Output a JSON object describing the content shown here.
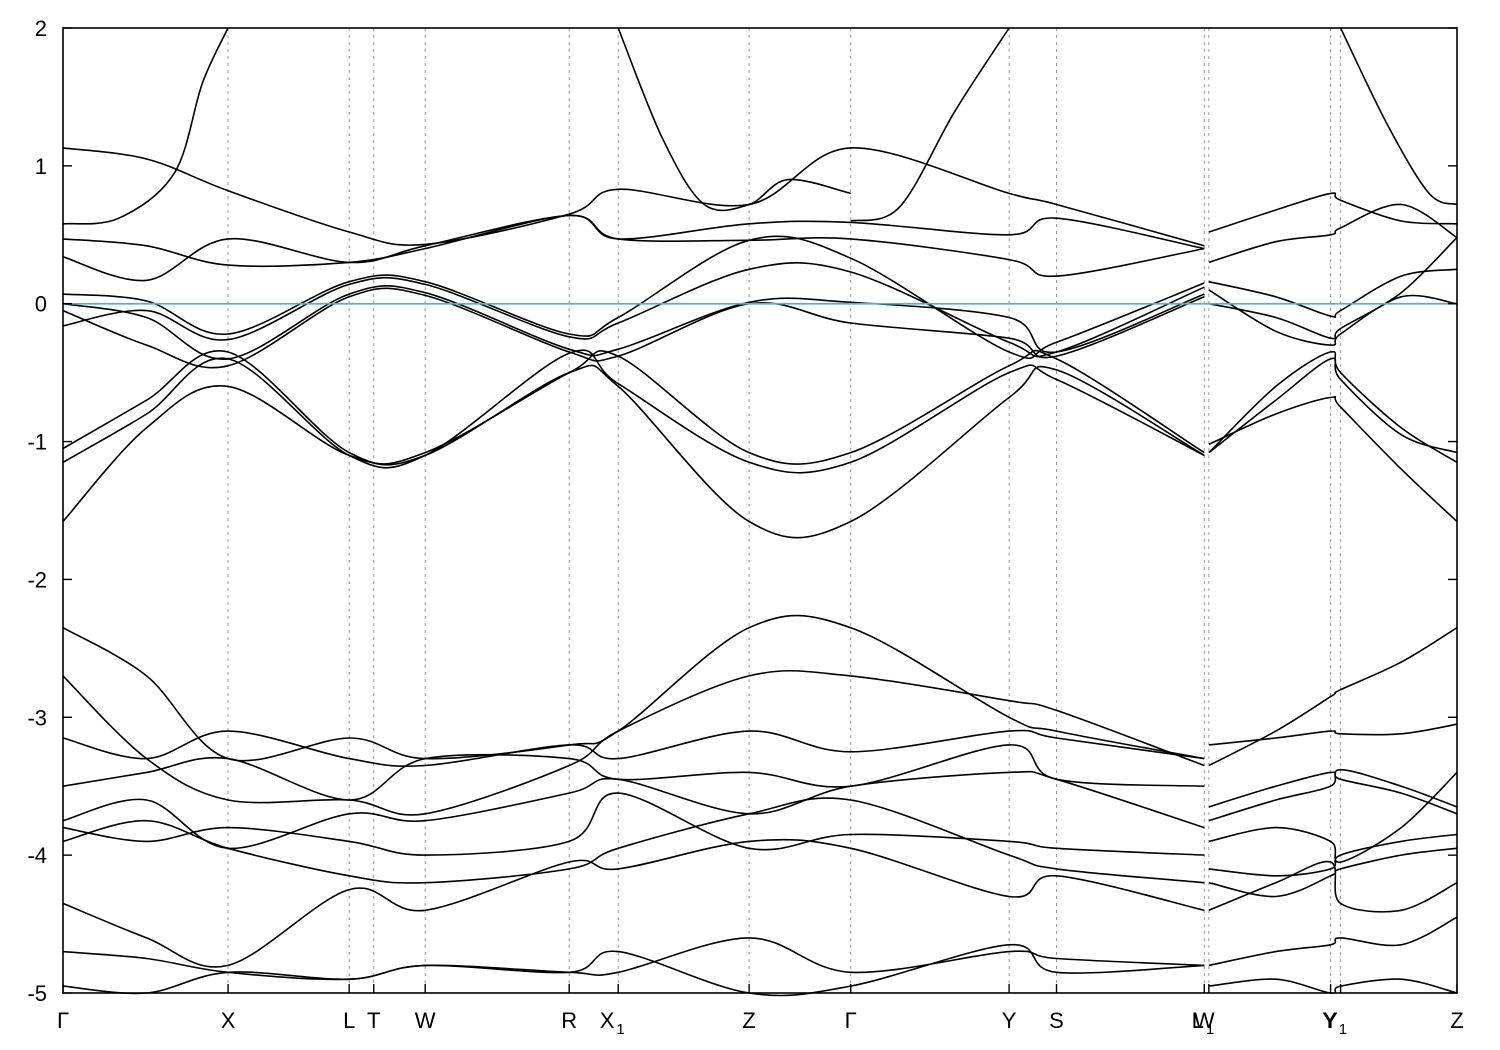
{
  "chart_data": {
    "type": "line",
    "title": "",
    "xlabel": "",
    "ylabel": "",
    "ylim": [
      -5,
      2
    ],
    "yticks": [
      2,
      1,
      0,
      -1,
      -2,
      -3,
      -4,
      -5
    ],
    "xlim": [
      0,
      1
    ],
    "grid": "vertical dashed at high-symmetry points",
    "legend": "none",
    "colors": {
      "band": "#000000",
      "fermi_level": "#5aaec6",
      "gridline": "#9a9a9a"
    },
    "high_symmetry_points": [
      {
        "label": "Γ",
        "sub": "",
        "x": 0.0
      },
      {
        "label": "X",
        "sub": "",
        "x": 0.1184
      },
      {
        "label": "L",
        "sub": "",
        "x": 0.2053
      },
      {
        "label": "T",
        "sub": "",
        "x": 0.2229
      },
      {
        "label": "W",
        "sub": "",
        "x": 0.2598
      },
      {
        "label": "R",
        "sub": "",
        "x": 0.3631
      },
      {
        "label": "X",
        "sub": "1",
        "x": 0.3983
      },
      {
        "label": "Z",
        "sub": "",
        "x": 0.4922
      },
      {
        "label": "Γ",
        "sub": "",
        "x": 0.5651
      },
      {
        "label": "Y",
        "sub": "",
        "x": 0.6787
      },
      {
        "label": "S",
        "sub": "",
        "x": 0.7127
      },
      {
        "label": "W",
        "sub": "",
        "x": 0.8187
      },
      {
        "label": "L",
        "sub": "1",
        "x": 0.822
      },
      {
        "label": "Y",
        "sub": "",
        "x": 0.9093
      },
      {
        "label": "Y",
        "sub": "1",
        "x": 0.9165
      },
      {
        "label": "Z",
        "sub": "",
        "x": 1.0
      }
    ],
    "fermi_level": 0,
    "series": [
      {
        "x": [
          0.0,
          0.04,
          0.08,
          0.1,
          0.1184
        ],
        "values": [
          0.58,
          0.62,
          0.95,
          1.6,
          2.0
        ]
      },
      {
        "x": [
          0.3983,
          0.43,
          0.46,
          0.4922,
          0.52,
          0.565
        ],
        "values": [
          2.0,
          1.2,
          0.72,
          0.72,
          0.9,
          0.8
        ]
      },
      {
        "x": [
          0.565,
          0.6,
          0.64,
          0.6787
        ],
        "values": [
          0.6,
          0.7,
          1.4,
          2.0
        ]
      },
      {
        "x": [
          0.9165,
          0.95,
          0.98,
          1.0
        ],
        "values": [
          2.0,
          1.3,
          0.8,
          0.72
        ]
      },
      {
        "x": [
          0.0,
          0.06,
          0.1184,
          0.2053,
          0.2598,
          0.3631,
          0.3983,
          0.4922,
          0.5651,
          0.6787,
          0.7127,
          0.8187
        ],
        "values": [
          1.13,
          1.05,
          0.82,
          0.52,
          0.43,
          0.65,
          0.83,
          0.72,
          1.13,
          0.8,
          0.72,
          0.42
        ]
      },
      {
        "x": [
          0.0,
          0.06,
          0.1184,
          0.2053,
          0.2598,
          0.3631,
          0.3983,
          0.4922,
          0.5651,
          0.6787,
          0.7127,
          0.8187
        ],
        "values": [
          0.47,
          0.42,
          0.28,
          0.3,
          0.4,
          0.64,
          0.47,
          0.58,
          0.59,
          0.5,
          0.62,
          0.4
        ]
      },
      {
        "x": [
          0.0,
          0.06,
          0.1184,
          0.2053,
          0.2598,
          0.3631,
          0.3983,
          0.4922,
          0.5651,
          0.6787,
          0.7127,
          0.8187
        ],
        "values": [
          0.34,
          0.17,
          0.47,
          0.3,
          0.42,
          0.64,
          0.47,
          0.46,
          0.47,
          0.32,
          0.2,
          0.4
        ]
      },
      {
        "x": [
          0.822,
          0.87,
          0.9093,
          0.9165,
          0.96,
          1.0
        ],
        "values": [
          0.52,
          0.68,
          0.8,
          0.75,
          0.6,
          0.58
        ]
      },
      {
        "x": [
          0.822,
          0.87,
          0.9093,
          0.9165,
          0.96,
          1.0
        ],
        "values": [
          0.3,
          0.45,
          0.5,
          0.55,
          0.72,
          0.48
        ]
      },
      {
        "x": [
          0.0,
          0.06,
          0.1184,
          0.2053,
          0.2598,
          0.3631,
          0.3983,
          0.4922,
          0.5651,
          0.6787,
          0.7127,
          0.8187
        ],
        "values": [
          0.07,
          0.02,
          -0.22,
          0.16,
          0.16,
          -0.22,
          -0.1,
          0.46,
          0.33,
          -0.35,
          -0.28,
          0.15
        ]
      },
      {
        "x": [
          0.0,
          0.06,
          0.1184,
          0.2053,
          0.2598,
          0.3631,
          0.3983,
          0.4922,
          0.5651,
          0.6787,
          0.7127,
          0.8187
        ],
        "values": [
          -0.16,
          -0.05,
          -0.26,
          0.14,
          0.14,
          -0.24,
          -0.14,
          0.25,
          0.23,
          -0.28,
          -0.35,
          0.12
        ]
      },
      {
        "x": [
          0.0,
          0.06,
          0.1184,
          0.2053,
          0.2598,
          0.3631,
          0.3983,
          0.4922,
          0.5651,
          0.6787,
          0.7127,
          0.8187
        ],
        "values": [
          0.0,
          -0.1,
          -0.4,
          0.07,
          0.08,
          -0.33,
          -0.33,
          0.01,
          0.01,
          -0.1,
          -0.35,
          0.07
        ]
      },
      {
        "x": [
          0.0,
          0.06,
          0.1184,
          0.2053,
          0.2598,
          0.3631,
          0.3983,
          0.4922,
          0.5651,
          0.6787,
          0.7127,
          0.8187
        ],
        "values": [
          -0.05,
          -0.3,
          -0.45,
          0.05,
          0.06,
          -0.35,
          -0.38,
          0.0,
          -0.14,
          -0.25,
          -0.38,
          0.05
        ]
      },
      {
        "x": [
          0.822,
          0.87,
          0.9093,
          0.9165,
          0.96,
          1.0
        ],
        "values": [
          0.16,
          0.05,
          -0.09,
          -0.05,
          0.2,
          0.25
        ]
      },
      {
        "x": [
          0.822,
          0.87,
          0.9093,
          0.9165,
          0.96,
          1.0
        ],
        "values": [
          0.1,
          -0.2,
          -0.3,
          -0.22,
          0.05,
          0.0
        ]
      },
      {
        "x": [
          0.822,
          0.87,
          0.9093,
          0.9165,
          0.96,
          1.0
        ],
        "values": [
          0.0,
          -0.1,
          -0.25,
          -0.18,
          0.08,
          0.48
        ]
      },
      {
        "x": [
          0.0,
          0.06,
          0.1184,
          0.2053,
          0.2598,
          0.3631,
          0.3983,
          0.4922,
          0.5651,
          0.6787,
          0.7127,
          0.8187
        ],
        "values": [
          -1.05,
          -0.7,
          -0.35,
          -1.08,
          -1.08,
          -0.5,
          -0.38,
          -1.08,
          -1.08,
          -0.45,
          -0.4,
          -1.08
        ]
      },
      {
        "x": [
          0.0,
          0.06,
          0.1184,
          0.2053,
          0.2598,
          0.3631,
          0.3983,
          0.4922,
          0.5651,
          0.6787,
          0.7127,
          0.8187
        ],
        "values": [
          -1.15,
          -0.8,
          -0.4,
          -1.1,
          -1.1,
          -0.36,
          -0.58,
          -1.15,
          -1.15,
          -0.5,
          -0.55,
          -1.1
        ]
      },
      {
        "x": [
          0.0,
          0.06,
          0.1184,
          0.2053,
          0.2598,
          0.3631,
          0.3983,
          0.4922,
          0.5651,
          0.6787,
          0.7127,
          0.8187
        ],
        "values": [
          -1.58,
          -0.9,
          -0.6,
          -1.1,
          -1.1,
          -0.5,
          -0.6,
          -1.58,
          -1.58,
          -0.68,
          -0.48,
          -1.1
        ]
      },
      {
        "x": [
          0.822,
          0.87,
          0.9093,
          0.9165,
          0.96,
          1.0
        ],
        "values": [
          -1.02,
          -0.8,
          -0.68,
          -0.75,
          -1.2,
          -1.58
        ]
      },
      {
        "x": [
          0.822,
          0.87,
          0.9093,
          0.9165,
          0.96,
          1.0
        ],
        "values": [
          -1.08,
          -0.7,
          -0.4,
          -0.55,
          -0.95,
          -1.08
        ]
      },
      {
        "x": [
          0.822,
          0.87,
          0.9093,
          0.9165,
          0.96,
          1.0
        ],
        "values": [
          -1.08,
          -0.6,
          -0.35,
          -0.5,
          -0.9,
          -1.15
        ]
      },
      {
        "x": [
          0.0,
          0.06,
          0.1184,
          0.2053,
          0.2598,
          0.3631,
          0.3983,
          0.4922,
          0.5651,
          0.6787,
          0.7127,
          0.8187
        ],
        "values": [
          -2.35,
          -2.7,
          -3.3,
          -3.15,
          -3.3,
          -3.2,
          -3.1,
          -2.35,
          -2.35,
          -3.0,
          -3.1,
          -3.3
        ]
      },
      {
        "x": [
          0.0,
          0.06,
          0.1184,
          0.2053,
          0.2598,
          0.3631,
          0.3983,
          0.4922,
          0.5651,
          0.6787,
          0.7127,
          0.8187
        ],
        "values": [
          -2.7,
          -3.3,
          -3.6,
          -3.6,
          -3.7,
          -3.35,
          -3.1,
          -2.7,
          -2.7,
          -2.88,
          -2.95,
          -3.35
        ]
      },
      {
        "x": [
          0.0,
          0.06,
          0.1184,
          0.2053,
          0.2598,
          0.3631,
          0.3983,
          0.4922,
          0.5651,
          0.6787,
          0.7127,
          0.8187
        ],
        "values": [
          -3.15,
          -3.3,
          -3.1,
          -3.3,
          -3.35,
          -3.2,
          -3.3,
          -3.1,
          -3.25,
          -3.1,
          -3.15,
          -3.3
        ]
      },
      {
        "x": [
          0.0,
          0.06,
          0.1184,
          0.2053,
          0.2598,
          0.3631,
          0.3983,
          0.4922,
          0.5651,
          0.6787,
          0.7127,
          0.8187
        ],
        "values": [
          -3.5,
          -3.4,
          -3.3,
          -3.6,
          -3.3,
          -3.3,
          -3.45,
          -3.4,
          -3.5,
          -3.2,
          -3.45,
          -3.5
        ]
      },
      {
        "x": [
          0.0,
          0.06,
          0.1184,
          0.2053,
          0.2598,
          0.3631,
          0.3983,
          0.4922,
          0.5651,
          0.6787,
          0.7127,
          0.8187
        ],
        "values": [
          -3.75,
          -3.6,
          -3.95,
          -3.7,
          -3.75,
          -3.55,
          -3.45,
          -3.7,
          -3.5,
          -3.4,
          -3.45,
          -3.8
        ]
      },
      {
        "x": [
          0.0,
          0.06,
          0.1184,
          0.2053,
          0.2598,
          0.3631,
          0.3983,
          0.4922,
          0.5651,
          0.6787,
          0.7127,
          0.8187
        ],
        "values": [
          -3.8,
          -3.9,
          -3.8,
          -3.9,
          -4.0,
          -3.9,
          -3.55,
          -3.95,
          -3.85,
          -3.9,
          -3.95,
          -4.0
        ]
      },
      {
        "x": [
          0.0,
          0.06,
          0.1184,
          0.2053,
          0.2598,
          0.3631,
          0.3983,
          0.4922,
          0.5651,
          0.6787,
          0.7127,
          0.8187
        ],
        "values": [
          -3.9,
          -3.75,
          -3.95,
          -4.15,
          -4.2,
          -4.1,
          -3.95,
          -3.7,
          -3.6,
          -4.0,
          -4.1,
          -4.2
        ]
      },
      {
        "x": [
          0.0,
          0.06,
          0.1184,
          0.2053,
          0.2598,
          0.3631,
          0.3983,
          0.4922,
          0.5651,
          0.6787,
          0.7127,
          0.8187
        ],
        "values": [
          -4.35,
          -4.6,
          -4.8,
          -4.25,
          -4.4,
          -4.05,
          -4.1,
          -3.9,
          -3.95,
          -4.3,
          -4.15,
          -4.4
        ]
      },
      {
        "x": [
          0.0,
          0.06,
          0.1184,
          0.2053,
          0.2598,
          0.3631,
          0.3983,
          0.4922,
          0.5651,
          0.6787,
          0.7127,
          0.8187
        ],
        "values": [
          -4.7,
          -4.75,
          -4.85,
          -4.9,
          -4.8,
          -4.85,
          -4.85,
          -4.6,
          -4.85,
          -4.7,
          -4.75,
          -4.8
        ]
      },
      {
        "x": [
          0.0,
          0.06,
          0.1184,
          0.2053,
          0.2598,
          0.3631,
          0.3983,
          0.4922,
          0.5651,
          0.6787,
          0.7127,
          0.8187
        ],
        "values": [
          -4.95,
          -5.0,
          -4.85,
          -4.9,
          -4.8,
          -4.85,
          -4.7,
          -5.0,
          -4.95,
          -4.65,
          -4.85,
          -4.8
        ]
      },
      {
        "x": [
          0.822,
          0.87,
          0.9093,
          0.9165,
          0.96,
          1.0
        ],
        "values": [
          -3.2,
          -3.15,
          -3.1,
          -3.12,
          -3.12,
          -3.05
        ]
      },
      {
        "x": [
          0.822,
          0.87,
          0.9093,
          0.9165,
          0.96,
          1.0
        ],
        "values": [
          -3.35,
          -3.1,
          -2.85,
          -2.8,
          -2.6,
          -2.35
        ]
      },
      {
        "x": [
          0.822,
          0.87,
          0.9093,
          0.9165,
          0.96,
          1.0
        ],
        "values": [
          -3.65,
          -3.5,
          -3.4,
          -3.45,
          -3.55,
          -3.7
        ]
      },
      {
        "x": [
          0.822,
          0.87,
          0.9093,
          0.9165,
          0.96,
          1.0
        ],
        "values": [
          -3.75,
          -3.6,
          -3.5,
          -3.38,
          -3.5,
          -3.65
        ]
      },
      {
        "x": [
          0.822,
          0.87,
          0.9093,
          0.9165,
          0.96,
          1.0
        ],
        "values": [
          -3.9,
          -3.8,
          -3.9,
          -4.05,
          -3.8,
          -3.4
        ]
      },
      {
        "x": [
          0.822,
          0.87,
          0.9093,
          0.9165,
          0.96,
          1.0
        ],
        "values": [
          -4.1,
          -4.15,
          -4.1,
          -4.0,
          -3.9,
          -3.85
        ]
      },
      {
        "x": [
          0.822,
          0.87,
          0.9093,
          0.9165,
          0.96,
          1.0
        ],
        "values": [
          -4.2,
          -4.3,
          -4.15,
          -4.1,
          -4.0,
          -3.95
        ]
      },
      {
        "x": [
          0.822,
          0.87,
          0.9093,
          0.9165,
          0.96,
          1.0
        ],
        "values": [
          -4.4,
          -4.2,
          -4.05,
          -4.35,
          -4.4,
          -4.2
        ]
      },
      {
        "x": [
          0.822,
          0.87,
          0.9093,
          0.9165,
          0.96,
          1.0
        ],
        "values": [
          -4.8,
          -4.7,
          -4.65,
          -4.6,
          -4.65,
          -4.45
        ]
      },
      {
        "x": [
          0.822,
          0.87,
          0.9093,
          0.9165,
          0.96,
          1.0
        ],
        "values": [
          -4.95,
          -4.9,
          -5.0,
          -4.95,
          -4.9,
          -5.0
        ]
      }
    ]
  }
}
